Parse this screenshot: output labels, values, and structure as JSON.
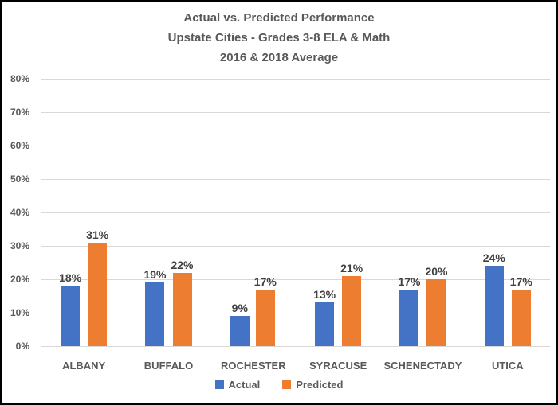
{
  "chart_data": {
    "type": "bar",
    "title_lines": [
      "Actual vs. Predicted Performance",
      "Upstate Cities - Grades 3-8 ELA & Math",
      "2016 & 2018 Average"
    ],
    "categories": [
      "ALBANY",
      "BUFFALO",
      "ROCHESTER",
      "SYRACUSE",
      "SCHENECTADY",
      "UTICA"
    ],
    "series": [
      {
        "name": "Actual",
        "color": "#4472C4",
        "values": [
          18,
          19,
          9,
          13,
          17,
          24
        ]
      },
      {
        "name": "Predicted",
        "color": "#ED7D31",
        "values": [
          31,
          22,
          17,
          21,
          20,
          17
        ]
      }
    ],
    "data_labels": [
      [
        "18%",
        "19%",
        "9%",
        "13%",
        "17%",
        "24%"
      ],
      [
        "31%",
        "22%",
        "17%",
        "21%",
        "20%",
        "17%"
      ]
    ],
    "ylim": [
      0,
      80
    ],
    "ytick_step": 10,
    "ytick_labels": [
      "0%",
      "10%",
      "20%",
      "30%",
      "40%",
      "50%",
      "60%",
      "70%",
      "80%"
    ],
    "grid": true,
    "legend_position": "bottom",
    "xlabel": "",
    "ylabel": ""
  },
  "colors": {
    "background": "#FFFFFF",
    "border": "#000000",
    "title": "#595959",
    "axis_text": "#595959",
    "data_label": "#404040",
    "gridline": "#D9D9D9",
    "series_actual": "#4472C4",
    "series_predicted": "#ED7D31"
  }
}
